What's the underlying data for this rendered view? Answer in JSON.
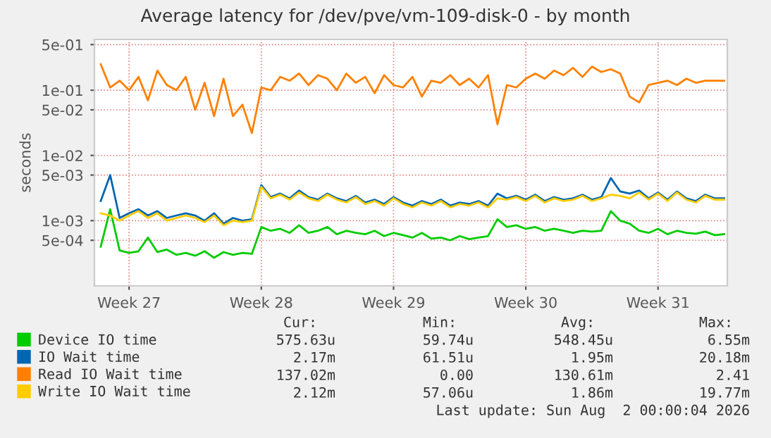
{
  "chart_data": {
    "type": "line",
    "title": "Average latency for /dev/pve/vm-109-disk-0 - by month",
    "ylabel": "seconds",
    "log": "y",
    "grid": true,
    "legend": "bottom left",
    "marker": "none",
    "line_style": "solid",
    "x": [
      "2026-07-01T00:00",
      "2026-07-01T12:00",
      "2026-07-02T00:00",
      "2026-07-02T12:00",
      "2026-07-03T00:00",
      "2026-07-03T12:00",
      "2026-07-04T00:00",
      "2026-07-04T12:00",
      "2026-07-05T00:00",
      "2026-07-05T12:00",
      "2026-07-06T00:00",
      "2026-07-06T12:00",
      "2026-07-07T00:00",
      "2026-07-07T12:00",
      "2026-07-08T00:00",
      "2026-07-08T12:00",
      "2026-07-09T00:00",
      "2026-07-09T12:00",
      "2026-07-10T00:00",
      "2026-07-10T12:00",
      "2026-07-11T00:00",
      "2026-07-11T12:00",
      "2026-07-12T00:00",
      "2026-07-12T12:00",
      "2026-07-13T00:00",
      "2026-07-13T12:00",
      "2026-07-14T00:00",
      "2026-07-14T12:00",
      "2026-07-15T00:00",
      "2026-07-15T12:00",
      "2026-07-16T00:00",
      "2026-07-16T12:00",
      "2026-07-17T00:00",
      "2026-07-17T12:00",
      "2026-07-18T00:00",
      "2026-07-18T12:00",
      "2026-07-19T00:00",
      "2026-07-19T12:00",
      "2026-07-20T00:00",
      "2026-07-20T12:00",
      "2026-07-21T00:00",
      "2026-07-21T12:00",
      "2026-07-22T00:00",
      "2026-07-22T12:00",
      "2026-07-23T00:00",
      "2026-07-23T12:00",
      "2026-07-24T00:00",
      "2026-07-24T12:00",
      "2026-07-25T00:00",
      "2026-07-25T12:00",
      "2026-07-26T00:00",
      "2026-07-26T12:00",
      "2026-07-27T00:00",
      "2026-07-27T12:00",
      "2026-07-28T00:00",
      "2026-07-28T12:00",
      "2026-07-29T00:00",
      "2026-07-29T12:00",
      "2026-07-30T00:00",
      "2026-07-30T12:00",
      "2026-07-31T00:00",
      "2026-07-31T12:00",
      "2026-08-01T00:00",
      "2026-08-01T12:00",
      "2026-08-02T00:00",
      "2026-08-02T12:00",
      "2026-08-03T00:00"
    ],
    "xlim": [
      "2026-06-30T16:00",
      "2026-08-03T04:00"
    ],
    "xticks": [
      {
        "value": "2026-07-02T12:00",
        "label": "Week 27"
      },
      {
        "value": "2026-07-09T12:00",
        "label": "Week 28"
      },
      {
        "value": "2026-07-16T12:00",
        "label": "Week 29"
      },
      {
        "value": "2026-07-23T12:00",
        "label": "Week 30"
      },
      {
        "value": "2026-07-30T12:00",
        "label": "Week 31"
      }
    ],
    "ylim": [
      0.0001,
      0.6
    ],
    "yticks": [
      {
        "value": 0.0005,
        "label": "5e-04"
      },
      {
        "value": 0.001,
        "label": "1e-03"
      },
      {
        "value": 0.005,
        "label": "5e-03"
      },
      {
        "value": 0.01,
        "label": "1e-02"
      },
      {
        "value": 0.05,
        "label": "5e-02"
      },
      {
        "value": 0.1,
        "label": "1e-01"
      },
      {
        "value": 0.5,
        "label": "5e-01"
      }
    ],
    "series": [
      {
        "name": "Device IO time",
        "color": "#00cc00",
        "values": [
          0.0004,
          0.0015,
          0.00035,
          0.00032,
          0.00034,
          0.00055,
          0.00033,
          0.00036,
          0.0003,
          0.00032,
          0.00029,
          0.00034,
          0.00027,
          0.00033,
          0.0003,
          0.00032,
          0.00031,
          0.0008,
          0.0007,
          0.00075,
          0.00065,
          0.00085,
          0.00065,
          0.0007,
          0.0008,
          0.00062,
          0.0007,
          0.00065,
          0.00062,
          0.0007,
          0.00058,
          0.00065,
          0.0006,
          0.00055,
          0.00065,
          0.00053,
          0.00055,
          0.0005,
          0.00058,
          0.00052,
          0.00055,
          0.00058,
          0.00105,
          0.0008,
          0.00085,
          0.00075,
          0.0008,
          0.0007,
          0.00075,
          0.0007,
          0.00065,
          0.0007,
          0.00068,
          0.0007,
          0.0014,
          0.001,
          0.0009,
          0.0007,
          0.00065,
          0.00075,
          0.00062,
          0.0007,
          0.00065,
          0.00063,
          0.00068,
          0.0006,
          0.00062
        ]
      },
      {
        "name": "IO Wait time",
        "color": "#0066b3",
        "values": [
          0.002,
          0.005,
          0.0011,
          0.0013,
          0.0015,
          0.0012,
          0.0014,
          0.0011,
          0.0012,
          0.0013,
          0.0012,
          0.001,
          0.0013,
          0.0009,
          0.0011,
          0.001,
          0.00105,
          0.0035,
          0.0023,
          0.0026,
          0.0022,
          0.0029,
          0.0023,
          0.0021,
          0.0026,
          0.0022,
          0.002,
          0.0024,
          0.0019,
          0.0021,
          0.0018,
          0.0023,
          0.0019,
          0.0017,
          0.002,
          0.0018,
          0.0021,
          0.0017,
          0.0019,
          0.0018,
          0.002,
          0.0017,
          0.0026,
          0.0022,
          0.0024,
          0.0021,
          0.0025,
          0.002,
          0.0023,
          0.0021,
          0.0022,
          0.0025,
          0.0021,
          0.0023,
          0.0045,
          0.0028,
          0.0026,
          0.0029,
          0.0022,
          0.0027,
          0.0021,
          0.0028,
          0.0022,
          0.002,
          0.0025,
          0.0022,
          0.0022
        ]
      },
      {
        "name": "Read IO Wait time",
        "color": "#ff8000",
        "values": [
          0.25,
          0.11,
          0.14,
          0.1,
          0.16,
          0.07,
          0.2,
          0.12,
          0.1,
          0.16,
          0.05,
          0.13,
          0.04,
          0.15,
          0.04,
          0.06,
          0.022,
          0.11,
          0.1,
          0.16,
          0.14,
          0.18,
          0.12,
          0.17,
          0.15,
          0.1,
          0.18,
          0.13,
          0.16,
          0.09,
          0.17,
          0.12,
          0.11,
          0.16,
          0.08,
          0.14,
          0.13,
          0.17,
          0.12,
          0.15,
          0.11,
          0.17,
          0.03,
          0.12,
          0.11,
          0.15,
          0.18,
          0.15,
          0.2,
          0.17,
          0.22,
          0.16,
          0.23,
          0.19,
          0.21,
          0.18,
          0.08,
          0.065,
          0.12,
          0.13,
          0.14,
          0.12,
          0.15,
          0.13,
          0.14,
          0.14,
          0.14
        ]
      },
      {
        "name": "Write IO Wait time",
        "color": "#ffcc00",
        "values": [
          0.0013,
          0.0012,
          0.001,
          0.0012,
          0.0014,
          0.0011,
          0.0013,
          0.001,
          0.0011,
          0.0012,
          0.0011,
          0.00095,
          0.0012,
          0.00085,
          0.001,
          0.00095,
          0.001,
          0.0033,
          0.0022,
          0.0025,
          0.0021,
          0.0027,
          0.0022,
          0.002,
          0.0025,
          0.0021,
          0.0019,
          0.0023,
          0.0018,
          0.002,
          0.0017,
          0.0022,
          0.0018,
          0.0016,
          0.0019,
          0.0017,
          0.002,
          0.0016,
          0.0018,
          0.0017,
          0.0019,
          0.0016,
          0.0022,
          0.0021,
          0.0023,
          0.002,
          0.0024,
          0.0019,
          0.0022,
          0.002,
          0.0021,
          0.0024,
          0.002,
          0.0022,
          0.0025,
          0.0024,
          0.0022,
          0.0027,
          0.0021,
          0.0026,
          0.002,
          0.0027,
          0.0021,
          0.0019,
          0.0024,
          0.0021,
          0.0021
        ]
      }
    ],
    "annotations": [
      "Cur:",
      "Min:",
      "Avg:",
      "Max:",
      "575.63u",
      "59.74u",
      "548.45u",
      "6.55m",
      "2.17m",
      "61.51u",
      "1.95m",
      "20.18m",
      "137.02m",
      "0.00",
      "130.61m",
      "2.41",
      "2.12m",
      "57.06u",
      "1.86m",
      "19.77m",
      "Last update: Sun Aug  2 00:00:04 2026"
    ]
  }
}
